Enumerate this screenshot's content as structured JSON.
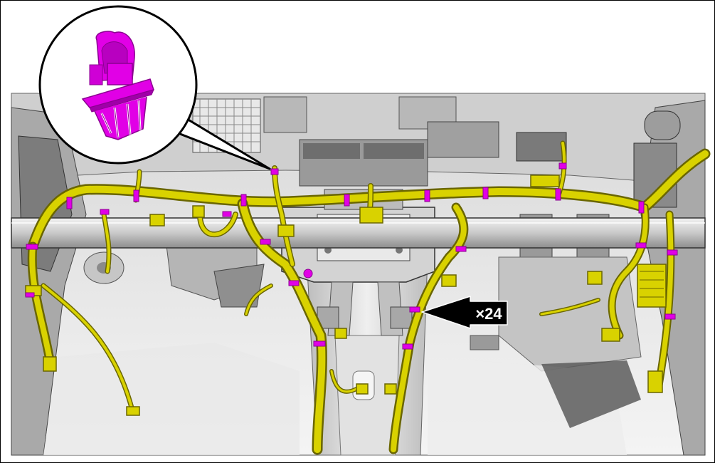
{
  "diagram": {
    "callout_label": "×24",
    "colors": {
      "harness": "#d9d200",
      "harness_dark": "#8c8700",
      "clip": "#e100e6",
      "clip_dark": "#8a0090",
      "body_light": "#e6e6e6",
      "body_mid": "#bdbdbd",
      "body_dark": "#6f6f6f",
      "outline": "#000000"
    },
    "icons": [
      "harness-clip-icon",
      "callout-arrow-icon"
    ]
  }
}
